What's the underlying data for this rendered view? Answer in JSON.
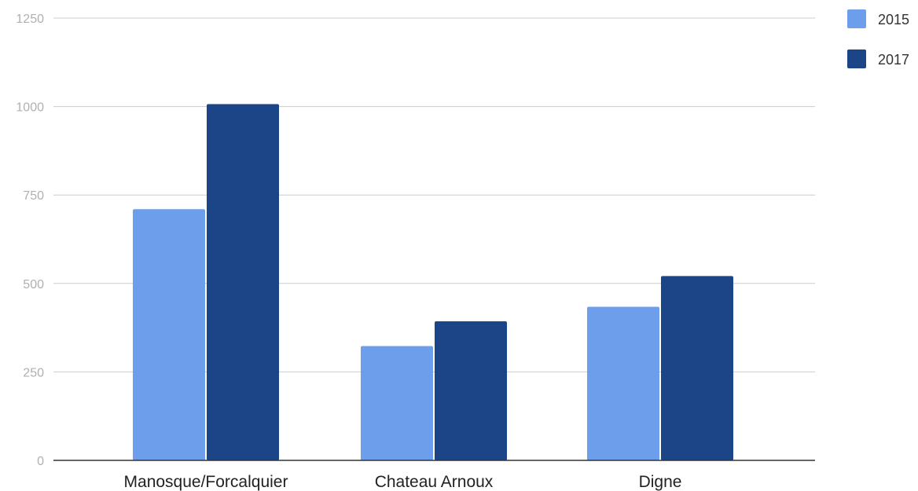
{
  "chart_data": {
    "type": "bar",
    "title": "",
    "xlabel": "",
    "ylabel": "",
    "categories": [
      "Manosque/Forcalquier",
      "Chateau Arnoux",
      "Digne"
    ],
    "series": [
      {
        "name": "2015",
        "values": [
          710,
          323,
          434
        ],
        "color": "#6d9eeb"
      },
      {
        "name": "2017",
        "values": [
          1007,
          393,
          521
        ],
        "color": "#1c4587"
      }
    ],
    "ylim": [
      0,
      1250
    ],
    "yticks": [
      0,
      250,
      500,
      750,
      1000,
      1250
    ],
    "grid": true,
    "legend_position": "top-right"
  }
}
